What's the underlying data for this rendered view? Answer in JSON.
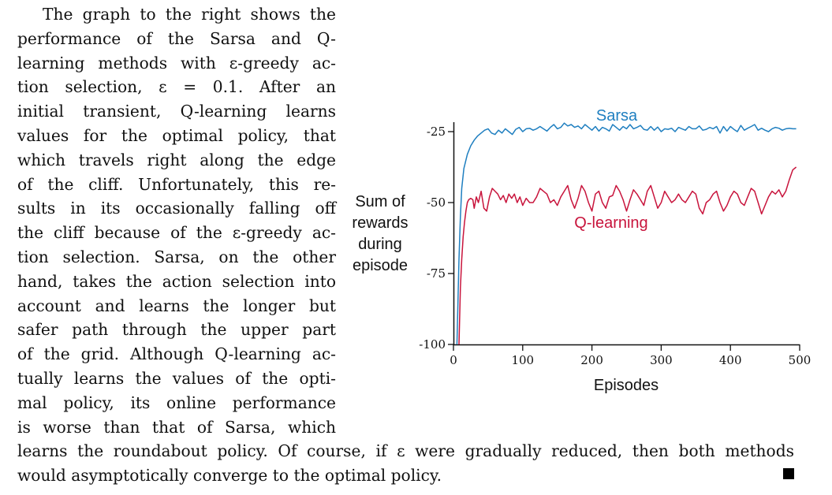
{
  "paragraph_lines": [
    "The graph to the right shows the",
    "performance of the Sarsa and Q-",
    "learning methods with ε-greedy ac-",
    "tion selection, ε = 0.1. After an",
    "initial transient, Q-learning learns",
    "values for the optimal policy, that",
    "which travels right along the edge",
    "of the cliff. Unfortunately, this re-",
    "sults in its occasionally falling off",
    "the cliff because of the ε-greedy ac-",
    "tion selection. Sarsa, on the other",
    "hand, takes the action selection into",
    "account and learns the longer but",
    "safer path through the upper part",
    "of the grid. Although Q-learning ac-",
    "tually learns the values of the opti-",
    "mal policy, its online performance",
    "is worse than that of Sarsa, which"
  ],
  "bottom_lines": [
    "learns the roundabout policy. Of course, if ε were gradually reduced, then both methods",
    "would asymptotically converge to the optimal policy."
  ],
  "chart_data": {
    "type": "line",
    "ylabel_lines": [
      "Sum of",
      "rewards",
      "during",
      "episode"
    ],
    "xlabel": "Episodes",
    "x_ticks": [
      0,
      100,
      200,
      300,
      400,
      500
    ],
    "y_ticks": [
      -25,
      -50,
      -75,
      -100
    ],
    "y_tick_labels": [
      "-25",
      "-50",
      "-75",
      "-100"
    ],
    "xlim": [
      0,
      500
    ],
    "ylim": [
      -100,
      -20
    ],
    "grid": false,
    "series": [
      {
        "name": "Sarsa",
        "color": "#1f7fc0",
        "x": [
          5,
          8,
          10,
          12,
          15,
          20,
          25,
          30,
          35,
          40,
          45,
          50,
          55,
          60,
          65,
          70,
          75,
          80,
          85,
          90,
          95,
          100,
          105,
          110,
          115,
          120,
          125,
          130,
          135,
          140,
          145,
          150,
          155,
          160,
          165,
          170,
          175,
          180,
          185,
          190,
          195,
          200,
          205,
          210,
          215,
          220,
          225,
          230,
          235,
          240,
          245,
          250,
          255,
          260,
          265,
          270,
          275,
          280,
          285,
          290,
          295,
          300,
          305,
          310,
          315,
          320,
          325,
          330,
          335,
          340,
          345,
          350,
          355,
          360,
          365,
          370,
          375,
          380,
          385,
          390,
          395,
          400,
          405,
          410,
          415,
          420,
          425,
          430,
          435,
          440,
          445,
          450,
          455,
          460,
          465,
          470,
          475,
          480,
          485,
          490,
          495
        ],
        "values": [
          -100,
          -70,
          -55,
          -45,
          -38,
          -33,
          -30,
          -28,
          -26.5,
          -25.5,
          -24.5,
          -24,
          -25.5,
          -26,
          -24.5,
          -25.5,
          -24,
          -25,
          -26,
          -24.2,
          -23.5,
          -25,
          -24,
          -23.8,
          -24.5,
          -24,
          -23.2,
          -24,
          -24.8,
          -23.5,
          -22.5,
          -24,
          -23.5,
          -22,
          -23,
          -22.5,
          -23.5,
          -23,
          -24,
          -22.5,
          -23.5,
          -24.5,
          -23.2,
          -24.8,
          -23.5,
          -24,
          -24.8,
          -22.5,
          -23.5,
          -24.5,
          -23.2,
          -24,
          -22.5,
          -24,
          -23.5,
          -22.8,
          -24.2,
          -24.5,
          -23.2,
          -24.5,
          -23.4,
          -25,
          -24,
          -24.2,
          -23.8,
          -25,
          -23.5,
          -24,
          -24.5,
          -23.2,
          -24,
          -24,
          -23,
          -24.5,
          -24.2,
          -23.5,
          -24,
          -23.2,
          -25.5,
          -23.2,
          -24.8,
          -23.2,
          -24.2,
          -25,
          -22.8,
          -24.5,
          -23.8,
          -23.2,
          -22.5,
          -24.5,
          -23.8,
          -24.5,
          -25,
          -24,
          -23.5,
          -23.8,
          -24.5,
          -24,
          -23.8,
          -24,
          -24
        ]
      },
      {
        "name": "Q-learning",
        "color": "#c8143c",
        "x": [
          8,
          10,
          12,
          14,
          16,
          18,
          20,
          22,
          25,
          28,
          30,
          33,
          36,
          40,
          44,
          48,
          52,
          56,
          60,
          64,
          68,
          72,
          76,
          80,
          84,
          88,
          92,
          96,
          100,
          105,
          110,
          115,
          120,
          125,
          130,
          135,
          140,
          145,
          150,
          155,
          160,
          165,
          170,
          175,
          180,
          185,
          190,
          195,
          200,
          205,
          210,
          215,
          220,
          225,
          230,
          235,
          240,
          245,
          250,
          255,
          260,
          265,
          270,
          275,
          280,
          285,
          290,
          295,
          300,
          305,
          310,
          315,
          320,
          325,
          330,
          335,
          340,
          345,
          350,
          355,
          360,
          365,
          370,
          375,
          380,
          385,
          390,
          395,
          400,
          405,
          410,
          415,
          420,
          425,
          430,
          435,
          440,
          445,
          450,
          455,
          460,
          465,
          470,
          475,
          480,
          485,
          490,
          495
        ],
        "values": [
          -100,
          -80,
          -70,
          -62,
          -57,
          -53,
          -50,
          -49,
          -48.5,
          -49,
          -52,
          -48,
          -50,
          -46,
          -52,
          -53,
          -48,
          -45,
          -46,
          -47,
          -49,
          -47.5,
          -50,
          -47,
          -48.5,
          -47,
          -50,
          -48,
          -51,
          -48.5,
          -50,
          -50,
          -48,
          -45,
          -46,
          -47,
          -50,
          -49,
          -51,
          -48,
          -46,
          -44,
          -49,
          -52,
          -48.5,
          -44,
          -46,
          -50,
          -53,
          -47,
          -46,
          -50,
          -52,
          -48,
          -47.5,
          -44,
          -46,
          -49,
          -53,
          -49,
          -45.5,
          -47,
          -49,
          -51,
          -46,
          -44,
          -48,
          -52,
          -50,
          -46,
          -48,
          -50,
          -49,
          -47,
          -49,
          -50,
          -48,
          -46,
          -47,
          -52,
          -54,
          -50,
          -49,
          -47,
          -46,
          -50,
          -53,
          -51,
          -48,
          -46,
          -47,
          -50,
          -51,
          -48,
          -45,
          -46,
          -50,
          -54,
          -51,
          -48,
          -46,
          -47,
          -45.5,
          -48,
          -46,
          -42,
          -38.5,
          -37.5
        ]
      }
    ],
    "annotations": [
      {
        "text": "Sarsa",
        "color": "#1f7fc0"
      },
      {
        "text": "Q-learning",
        "color": "#c8143c"
      }
    ]
  }
}
